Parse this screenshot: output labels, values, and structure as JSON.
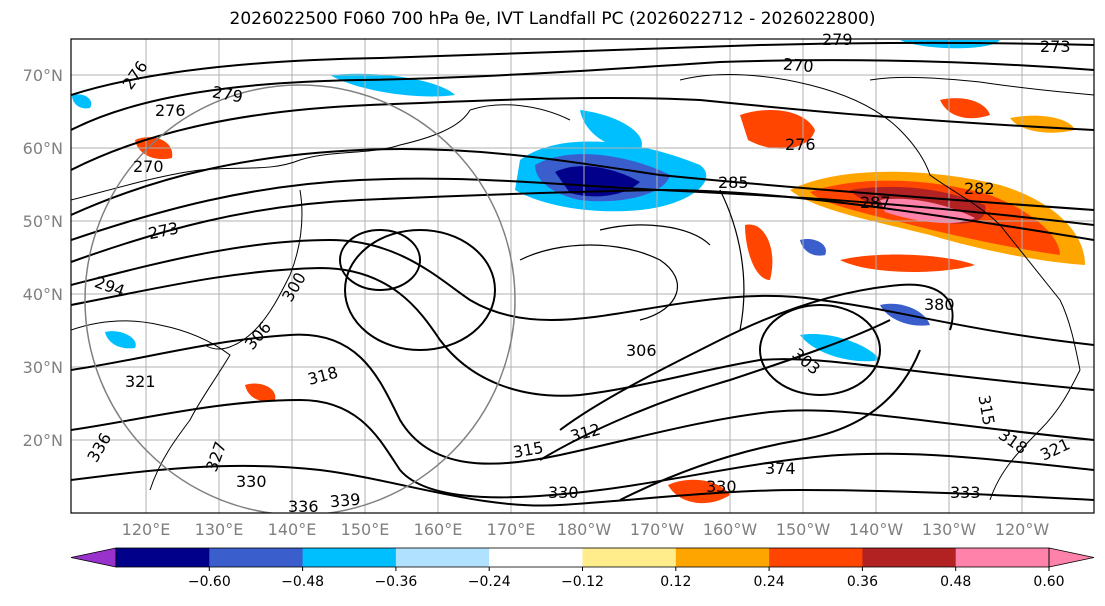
{
  "title": "2026022500 F060 700 hPa θe, IVT Landfall PC (2026022712 - 2026022800)",
  "lat_labels": [
    "70°N",
    "60°N",
    "50°N",
    "40°N",
    "30°N",
    "20°N"
  ],
  "lon_labels": [
    "120°E",
    "130°E",
    "140°E",
    "150°E",
    "160°E",
    "170°E",
    "180°W",
    "170°W",
    "160°W",
    "150°W",
    "140°W",
    "130°W",
    "120°W"
  ],
  "colorbar": {
    "ticks": [
      "−0.60",
      "−0.48",
      "−0.36",
      "−0.24",
      "−0.12",
      "0.12",
      "0.24",
      "0.36",
      "0.48",
      "0.60"
    ],
    "colors": [
      "#9932cc",
      "#00008b",
      "#3a5fcd",
      "#00bfff",
      "#b0e2ff",
      "#ffffff",
      "#ffec8b",
      "#ffa500",
      "#ff4500",
      "#b22222",
      "#ff82ab",
      "#ff82ab"
    ]
  },
  "contour_labels": [
    "276",
    "279",
    "270",
    "276",
    "279",
    "273",
    "270",
    "294",
    "300",
    "306",
    "285",
    "282",
    "287",
    "276",
    "321",
    "318",
    "306",
    "303",
    "315",
    "312",
    "336",
    "330",
    "336",
    "339",
    "327",
    "330",
    "330",
    "374",
    "333",
    "321",
    "318",
    "315",
    "380",
    "273"
  ]
}
